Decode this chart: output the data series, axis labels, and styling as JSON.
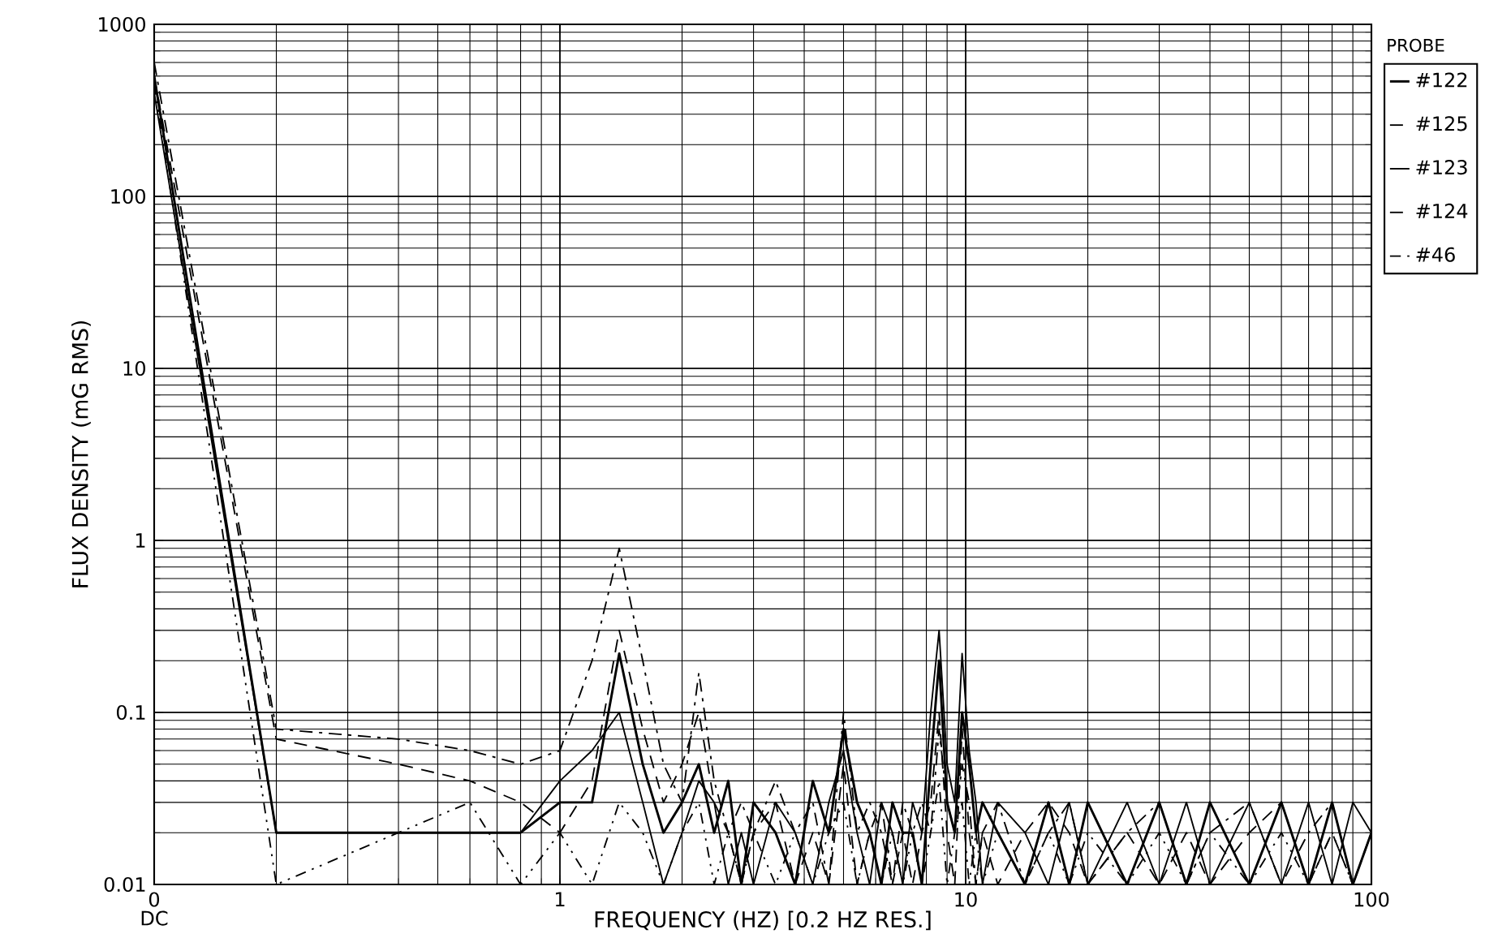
{
  "chart_data": {
    "type": "line",
    "xlabel": "FREQUENCY (HZ) [0.2 HZ RES.]",
    "ylabel": "FLUX DENSITY (mG RMS)",
    "legend_title": "PROBE",
    "legend": "right",
    "grid": true,
    "log": "xy",
    "annotations": [
      "DC"
    ],
    "xlim": [
      0.1,
      100
    ],
    "ylim": [
      0.01,
      1000
    ],
    "xticks": [
      {
        "value": 0.1,
        "label": "0"
      },
      1,
      10,
      100
    ],
    "yticks": [
      0.01,
      0.1,
      1,
      10,
      100,
      1000
    ],
    "x": [
      0.1,
      0.2,
      0.4,
      0.6,
      0.8,
      1.0,
      1.2,
      1.4,
      1.6,
      1.8,
      2.0,
      2.2,
      2.4,
      2.6,
      2.8,
      3.0,
      3.4,
      3.8,
      4.2,
      4.6,
      5.0,
      5.4,
      5.8,
      6.2,
      6.6,
      7.0,
      7.4,
      7.8,
      8.2,
      8.6,
      9.0,
      9.4,
      9.8,
      10.2,
      10.6,
      11,
      12,
      14,
      16,
      18,
      20,
      25,
      30,
      35,
      40,
      50,
      60,
      70,
      80,
      90,
      100
    ],
    "series": [
      {
        "name": "#122",
        "color": "#000000",
        "line_style": "solid",
        "values": [
          500,
          0.02,
          0.02,
          0.02,
          0.02,
          0.03,
          0.03,
          0.22,
          0.05,
          0.02,
          0.03,
          0.05,
          0.02,
          0.04,
          0.01,
          0.03,
          0.02,
          0.01,
          0.04,
          0.02,
          0.08,
          0.03,
          0.02,
          0.01,
          0.03,
          0.02,
          0.02,
          0.01,
          0.05,
          0.2,
          0.03,
          0.02,
          0.1,
          0.05,
          0.02,
          0.03,
          0.02,
          0.01,
          0.03,
          0.01,
          0.03,
          0.01,
          0.03,
          0.01,
          0.03,
          0.01,
          0.03,
          0.01,
          0.03,
          0.01,
          0.02
        ]
      },
      {
        "name": "#125",
        "color": "#000000",
        "line_style": "dashdot",
        "values": [
          600,
          0.08,
          0.07,
          0.06,
          0.05,
          0.06,
          0.2,
          0.9,
          0.2,
          0.05,
          0.03,
          0.17,
          0.04,
          0.02,
          0.03,
          0.02,
          0.04,
          0.02,
          0.03,
          0.01,
          0.1,
          0.02,
          0.03,
          0.02,
          0.01,
          0.03,
          0.02,
          0.03,
          0.02,
          0.08,
          0.03,
          0.02,
          0.05,
          0.03,
          0.01,
          0.02,
          0.03,
          0.01,
          0.02,
          0.03,
          0.01,
          0.02,
          0.03,
          0.01,
          0.02,
          0.03,
          0.01,
          0.02,
          0.03,
          0.01,
          0.02
        ]
      },
      {
        "name": "#123",
        "color": "#000000",
        "line_style": "solid",
        "values": [
          400,
          0.02,
          0.02,
          0.02,
          0.02,
          0.04,
          0.06,
          0.1,
          0.03,
          0.01,
          0.02,
          0.04,
          0.03,
          0.01,
          0.02,
          0.01,
          0.03,
          0.02,
          0.01,
          0.03,
          0.06,
          0.02,
          0.01,
          0.03,
          0.02,
          0.01,
          0.03,
          0.02,
          0.1,
          0.3,
          0.05,
          0.03,
          0.22,
          0.06,
          0.03,
          0.01,
          0.03,
          0.02,
          0.01,
          0.03,
          0.01,
          0.03,
          0.01,
          0.03,
          0.01,
          0.03,
          0.01,
          0.03,
          0.01,
          0.03,
          0.02
        ]
      },
      {
        "name": "#124",
        "color": "#000000",
        "line_style": "dashed",
        "values": [
          500,
          0.07,
          0.05,
          0.04,
          0.03,
          0.02,
          0.04,
          0.3,
          0.08,
          0.03,
          0.05,
          0.1,
          0.03,
          0.02,
          0.01,
          0.02,
          0.03,
          0.01,
          0.02,
          0.01,
          0.05,
          0.01,
          0.02,
          0.03,
          0.01,
          0.02,
          0.01,
          0.02,
          0.03,
          0.1,
          0.02,
          0.01,
          0.08,
          0.02,
          0.01,
          0.02,
          0.01,
          0.02,
          0.03,
          0.02,
          0.01,
          0.02,
          0.01,
          0.02,
          0.01,
          0.02,
          0.03,
          0.01,
          0.02,
          0.01,
          0.02
        ]
      },
      {
        "name": "#46",
        "color": "#000000",
        "line_style": "dotted",
        "values": [
          450,
          0.01,
          0.02,
          0.03,
          0.01,
          0.02,
          0.01,
          0.03,
          0.02,
          0.01,
          0.02,
          0.03,
          0.01,
          0.02,
          0.01,
          0.02,
          0.01,
          0.02,
          0.01,
          0.02,
          0.03,
          0.01,
          0.02,
          0.01,
          0.02,
          0.01,
          0.02,
          0.01,
          0.02,
          0.04,
          0.01,
          0.02,
          0.03,
          0.01,
          0.02,
          0.01,
          0.02,
          0.01,
          0.02,
          0.01,
          0.02,
          0.01,
          0.02,
          0.01,
          0.02,
          0.01,
          0.02,
          0.01,
          0.02,
          0.01,
          0.01
        ]
      }
    ]
  }
}
